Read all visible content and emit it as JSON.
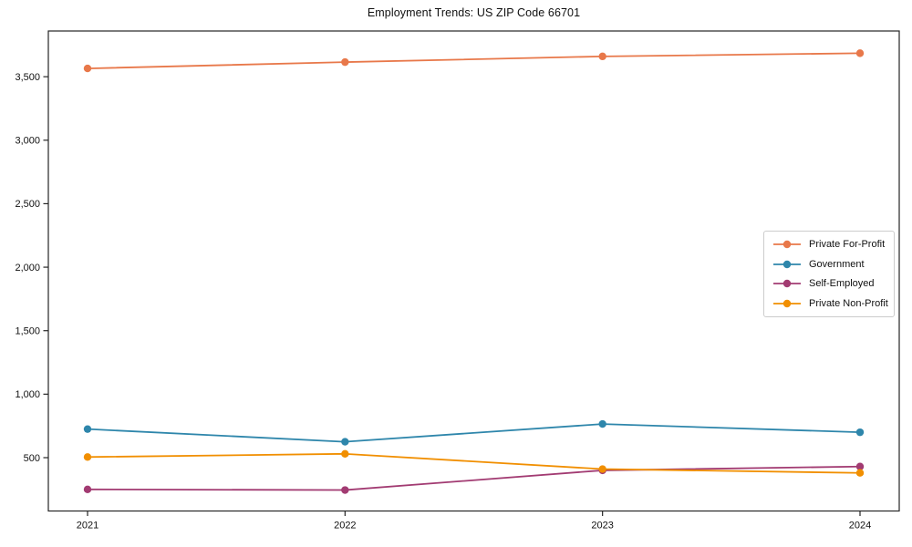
{
  "figure": {
    "background_color": "#ffffff",
    "spine_color": "#262626",
    "tick_color": "#262626",
    "text_color": "#111111",
    "legend_border_color": "#cccccc",
    "legend_background": "#ffffff"
  },
  "chart_data": {
    "type": "line",
    "title": "Employment Trends: US ZIP Code 66701",
    "xlabel": "",
    "ylabel": "",
    "categories": [
      "2021",
      "2022",
      "2023",
      "2024"
    ],
    "series": [
      {
        "name": "Private For-Profit",
        "color": "#E8784A",
        "values": [
          3565,
          3615,
          3660,
          3685
        ]
      },
      {
        "name": "Government",
        "color": "#2E86AB",
        "values": [
          725,
          625,
          765,
          700
        ]
      },
      {
        "name": "Self-Employed",
        "color": "#A23B72",
        "values": [
          250,
          245,
          400,
          430
        ]
      },
      {
        "name": "Private Non-Profit",
        "color": "#F18F01",
        "values": [
          505,
          530,
          410,
          380
        ]
      }
    ],
    "y_ticks": [
      500,
      1000,
      1500,
      2000,
      2500,
      3000,
      3500
    ],
    "y_tick_labels": [
      "500",
      "1,000",
      "1,500",
      "2,000",
      "2,500",
      "3,000",
      "3,500"
    ],
    "ylim": [
      80,
      3860
    ],
    "grid": false,
    "legend_position": "center-right",
    "marker_style": "circle"
  }
}
